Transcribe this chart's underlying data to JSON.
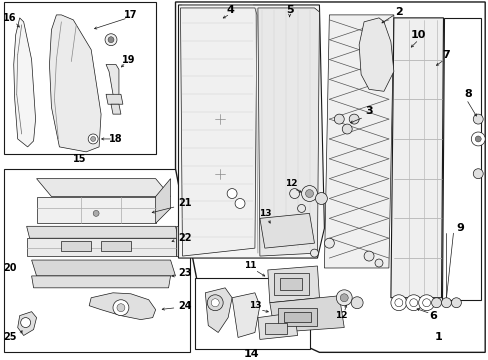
{
  "bg_color": "#ffffff",
  "line_color": "#1a1a1a",
  "label_color": "#000000",
  "fig_width": 4.89,
  "fig_height": 3.6,
  "dpi": 100,
  "font_size": 6.5,
  "font_size_large": 8.0
}
